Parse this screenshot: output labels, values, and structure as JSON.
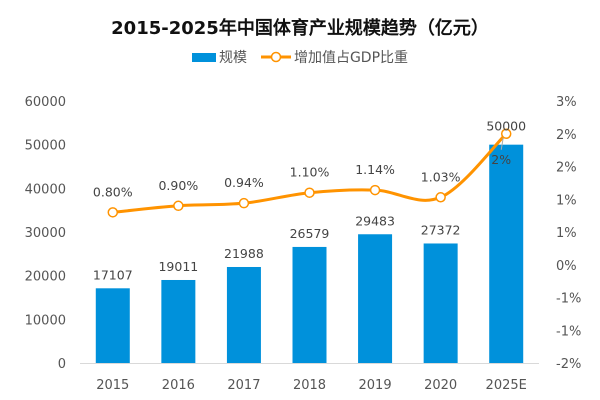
{
  "chart_data": {
    "type": "bar+line",
    "title": "2015-2025年中国体育产业规模趋势（亿元）",
    "categories": [
      "2015",
      "2016",
      "2017",
      "2018",
      "2019",
      "2020",
      "2025E"
    ],
    "series": [
      {
        "name": "规模",
        "type": "bar",
        "axis": "left",
        "values": [
          17107,
          19011,
          21988,
          26579,
          29483,
          27372,
          50000
        ],
        "labels": [
          "17107",
          "19011",
          "21988",
          "26579",
          "29483",
          "27372",
          "50000"
        ]
      },
      {
        "name": "增加值占GDP比重",
        "type": "line",
        "axis": "right",
        "smooth": true,
        "values": [
          0.8,
          0.9,
          0.94,
          1.1,
          1.14,
          1.03,
          2.0
        ],
        "labels": [
          "0.80%",
          "0.90%",
          "0.94%",
          "1.10%",
          "1.14%",
          "1.03%",
          "2%"
        ]
      }
    ],
    "left_axis": {
      "ylim": [
        0,
        60000
      ],
      "ticks": [
        "0",
        "10000",
        "20000",
        "30000",
        "40000",
        "50000",
        "60000"
      ]
    },
    "right_axis": {
      "ylim": [
        -1.5,
        2.5
      ],
      "unit": "%",
      "ticks": [
        "-2%",
        "-1%",
        "-1%",
        "0%",
        "1%",
        "1%",
        "2%",
        "2%",
        "3%"
      ]
    },
    "legend_position": "top",
    "grid": false,
    "colors": {
      "bar": "#0091DB",
      "line": "#FF9300",
      "marker_fill": "#FFFFFF",
      "text": "#555555"
    }
  }
}
